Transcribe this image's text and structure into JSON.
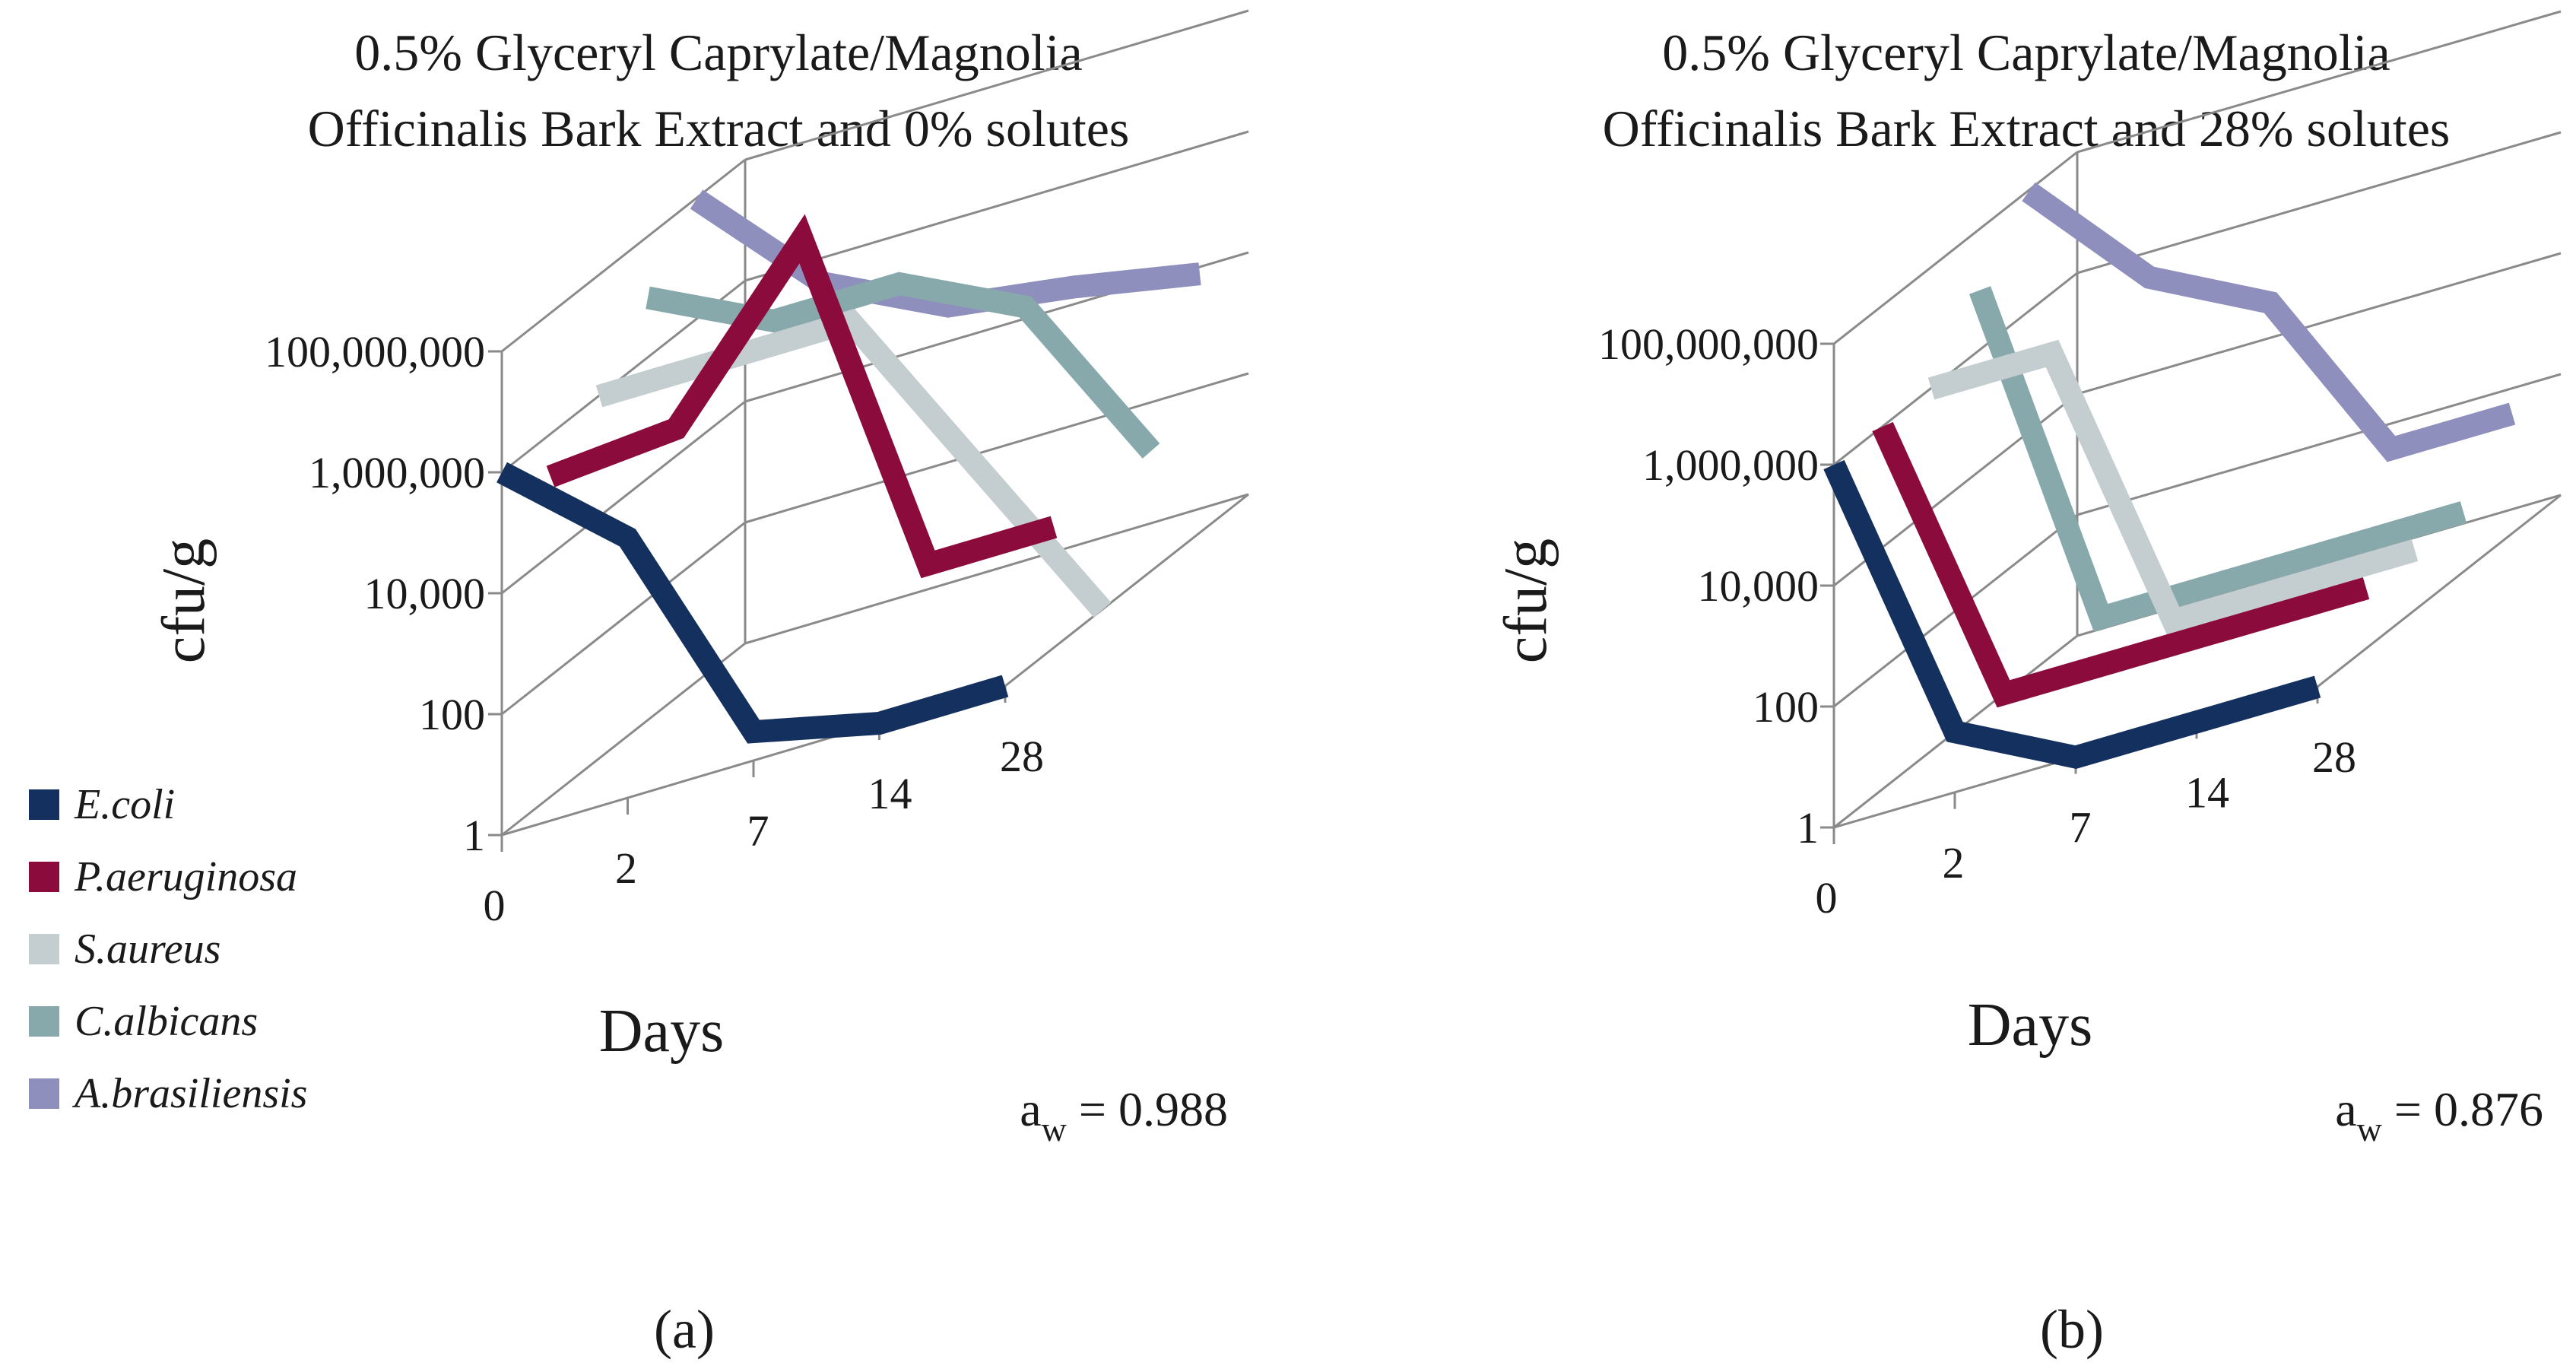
{
  "figure": {
    "panel_labels": [
      "(a)",
      "(b)"
    ],
    "legend": [
      {
        "label": "E.coli",
        "color": "#14305e"
      },
      {
        "label": "P.aeruginosa",
        "color": "#8a0b3c"
      },
      {
        "label": "S.aureus",
        "color": "#c4cdcf"
      },
      {
        "label": "C.albicans",
        "color": "#88a9ac"
      },
      {
        "label": "A.brasiliensis",
        "color": "#8f8fbd"
      }
    ]
  },
  "chart_data": [
    {
      "type": "line",
      "title_lines": [
        "0.5% Glyceryl Caprylate/Magnolia",
        "Officinalis Bark Extract and 0% solutes"
      ],
      "xlabel": "Days",
      "ylabel": "cfu/g",
      "categories": [
        "0",
        "2",
        "7",
        "14",
        "28"
      ],
      "y_scale": "log",
      "yticks": [
        "1",
        "100",
        "10,000",
        "1,000,000",
        "100,000,000"
      ],
      "aw_label": "a",
      "aw_sub": "w",
      "aw_value": " = 0.988",
      "series": [
        {
          "name": "E.coli",
          "values": [
            1000000,
            20000,
            3,
            1,
            1
          ]
        },
        {
          "name": "P.aeruginosa",
          "values": [
            200000,
            300000,
            100000000,
            100,
            100
          ]
        },
        {
          "name": "S.aureus",
          "values": [
            1000000,
            1000000,
            1000000,
            1000,
            1
          ]
        },
        {
          "name": "C.albicans",
          "values": [
            10000000,
            1000000,
            1000000,
            100000,
            100
          ]
        },
        {
          "name": "A.brasiliensis",
          "values": [
            100000000,
            1000000,
            100000,
            50000,
            20000
          ]
        }
      ]
    },
    {
      "type": "line",
      "title_lines": [
        "0.5% Glyceryl Caprylate/Magnolia",
        "Officinalis Bark Extract and 28% solutes"
      ],
      "xlabel": "Days",
      "ylabel": "cfu/g",
      "categories": [
        "0",
        "2",
        "7",
        "14",
        "28"
      ],
      "y_scale": "log",
      "yticks": [
        "1",
        "100",
        "10,000",
        "1,000,000",
        "100,000,000"
      ],
      "aw_label": "a",
      "aw_sub": "w",
      "aw_value": " = 0.876",
      "series": [
        {
          "name": "E.coli",
          "values": [
            1000000,
            10,
            1,
            1,
            1
          ]
        },
        {
          "name": "P.aeruginosa",
          "values": [
            1000000,
            10,
            10,
            10,
            10
          ]
        },
        {
          "name": "S.aureus",
          "values": [
            1000000,
            1000000,
            10,
            10,
            10
          ]
        },
        {
          "name": "C.albicans",
          "values": [
            10000000,
            10,
            10,
            10,
            10
          ]
        },
        {
          "name": "A.brasiliensis",
          "values": [
            100000000,
            1000000,
            100000,
            100,
            100
          ]
        }
      ]
    }
  ]
}
